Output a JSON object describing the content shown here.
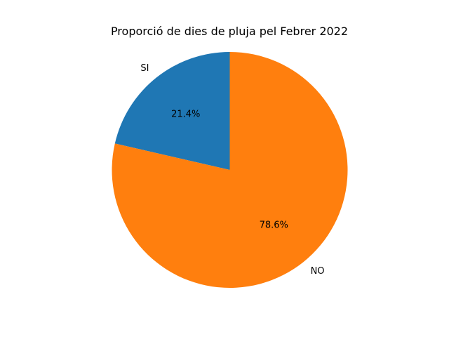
{
  "chart_data": {
    "type": "pie",
    "title": "Proporció de dies de pluja pel Febrer 2022",
    "labels": [
      "SI",
      "NO"
    ],
    "values": [
      21.4,
      78.6
    ],
    "percent_labels": [
      "21.4%",
      "78.6%"
    ],
    "colors": [
      "#1f77b4",
      "#ff7f0e"
    ],
    "start_angle_deg": 90,
    "direction": "counterclockwise",
    "legend": "none"
  }
}
